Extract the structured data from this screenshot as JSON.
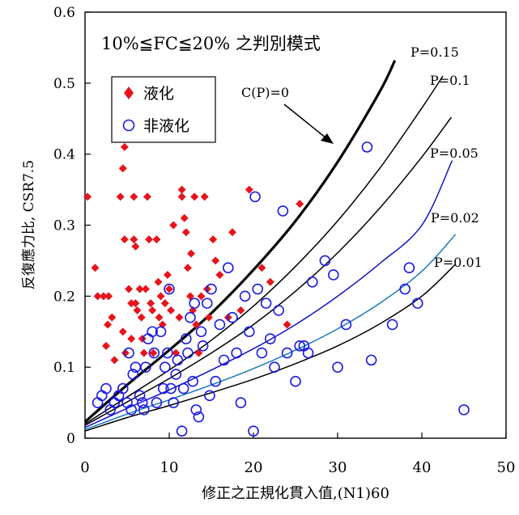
{
  "chart_data": {
    "type": "scatter",
    "title": "10%≦FC≦20% 之判別模式",
    "xlabel": "修正之正規化貫入值,(N1)60",
    "ylabel": "反復應力比, CSR7.5",
    "xlim": [
      0,
      50
    ],
    "ylim": [
      0,
      0.6
    ],
    "x_ticks": [
      "0",
      "10",
      "20",
      "30",
      "40",
      "50"
    ],
    "y_ticks": [
      "0",
      "0.1",
      "0.2",
      "0.3",
      "0.4",
      "0.5",
      "0.6"
    ],
    "grid": false,
    "legend": {
      "placement": "upper-left",
      "entries": [
        "液化",
        "非液化"
      ]
    },
    "annotation": "C(P)=0",
    "series": [
      {
        "name": "液化",
        "marker": "filled-diamond",
        "color": "#e8141b",
        "points": [
          [
            0.3,
            0.34
          ],
          [
            1.2,
            0.24
          ],
          [
            1.5,
            0.2
          ],
          [
            2.2,
            0.2
          ],
          [
            2.5,
            0.13
          ],
          [
            2.7,
            0.16
          ],
          [
            2.8,
            0.2
          ],
          [
            3.2,
            0.17
          ],
          [
            3.5,
            0.11
          ],
          [
            4.2,
            0.34
          ],
          [
            4.5,
            0.38
          ],
          [
            4.7,
            0.41
          ],
          [
            4.7,
            0.28
          ],
          [
            4.5,
            0.15
          ],
          [
            4.8,
            0.12
          ],
          [
            5.2,
            0.21
          ],
          [
            5.5,
            0.19
          ],
          [
            5.5,
            0.14
          ],
          [
            5.8,
            0.34
          ],
          [
            5.8,
            0.28
          ],
          [
            6,
            0.27
          ],
          [
            6,
            0.19
          ],
          [
            6.2,
            0.18
          ],
          [
            6.5,
            0.21
          ],
          [
            6.7,
            0.17
          ],
          [
            6.8,
            0.14
          ],
          [
            7,
            0.12
          ],
          [
            7.2,
            0.21
          ],
          [
            7.4,
            0.34
          ],
          [
            7.6,
            0.28
          ],
          [
            7.8,
            0.19
          ],
          [
            8,
            0.18
          ],
          [
            8.1,
            0.12
          ],
          [
            8.5,
            0.28
          ],
          [
            8.7,
            0.22
          ],
          [
            8.8,
            0.17
          ],
          [
            9,
            0.2
          ],
          [
            9.2,
            0.16
          ],
          [
            9.5,
            0.19
          ],
          [
            9.8,
            0.23
          ],
          [
            10,
            0.21
          ],
          [
            10.2,
            0.18
          ],
          [
            10.5,
            0.3
          ],
          [
            10.8,
            0.12
          ],
          [
            11.2,
            0.17
          ],
          [
            11.5,
            0.35
          ],
          [
            11.5,
            0.34
          ],
          [
            11.8,
            0.31
          ],
          [
            12,
            0.29
          ],
          [
            12.2,
            0.24
          ],
          [
            12.5,
            0.2
          ],
          [
            12.6,
            0.26
          ],
          [
            12.8,
            0.18
          ],
          [
            13,
            0.34
          ],
          [
            13.2,
            0.16
          ],
          [
            13.5,
            0.12
          ],
          [
            13.8,
            0.2
          ],
          [
            14.2,
            0.34
          ],
          [
            14.5,
            0.21
          ],
          [
            14.7,
            0.17
          ],
          [
            15.2,
            0.28
          ],
          [
            15.5,
            0.25
          ],
          [
            16,
            0.23
          ],
          [
            17,
            0.17
          ],
          [
            17.5,
            0.29
          ],
          [
            18.5,
            0.18
          ],
          [
            19.5,
            0.35
          ],
          [
            21,
            0.24
          ],
          [
            22,
            0.22
          ],
          [
            24,
            0.16
          ],
          [
            25.5,
            0.33
          ]
        ]
      },
      {
        "name": "非液化",
        "marker": "open-circle",
        "color": "#1a1ae6",
        "points": [
          [
            1.5,
            0.05
          ],
          [
            2,
            0.06
          ],
          [
            2.5,
            0.07
          ],
          [
            3,
            0.04
          ],
          [
            3.5,
            0.05
          ],
          [
            4,
            0.06
          ],
          [
            4.5,
            0.07
          ],
          [
            5,
            0.05
          ],
          [
            5.2,
            0.12
          ],
          [
            5.5,
            0.04
          ],
          [
            5.7,
            0.09
          ],
          [
            6,
            0.1
          ],
          [
            6.5,
            0.06
          ],
          [
            6.8,
            0.05
          ],
          [
            7,
            0.04
          ],
          [
            7.2,
            0.1
          ],
          [
            7.5,
            0.14
          ],
          [
            8,
            0.15
          ],
          [
            8.2,
            0.12
          ],
          [
            8.5,
            0.05
          ],
          [
            9,
            0.15
          ],
          [
            9.3,
            0.07
          ],
          [
            9.5,
            0.1
          ],
          [
            9.8,
            0.12
          ],
          [
            10,
            0.21
          ],
          [
            10.2,
            0.07
          ],
          [
            10.5,
            0.05
          ],
          [
            10.8,
            0.09
          ],
          [
            11,
            0.11
          ],
          [
            11.5,
            0.01
          ],
          [
            11.7,
            0.07
          ],
          [
            12,
            0.14
          ],
          [
            12.2,
            0.12
          ],
          [
            12.5,
            0.17
          ],
          [
            12.8,
            0.08
          ],
          [
            13,
            0.19
          ],
          [
            13.2,
            0.04
          ],
          [
            13.5,
            0.03
          ],
          [
            13.8,
            0.15
          ],
          [
            14,
            0.13
          ],
          [
            14.5,
            0.19
          ],
          [
            14.8,
            0.06
          ],
          [
            15,
            0.21
          ],
          [
            15.5,
            0.08
          ],
          [
            16,
            0.16
          ],
          [
            16.5,
            0.11
          ],
          [
            17,
            0.24
          ],
          [
            17.5,
            0.17
          ],
          [
            18,
            0.12
          ],
          [
            18.5,
            0.05
          ],
          [
            19,
            0.2
          ],
          [
            19.5,
            0.15
          ],
          [
            20,
            0.01
          ],
          [
            20.2,
            0.34
          ],
          [
            20.5,
            0.21
          ],
          [
            21,
            0.12
          ],
          [
            21.5,
            0.19
          ],
          [
            22,
            0.14
          ],
          [
            22.5,
            0.1
          ],
          [
            23,
            0.18
          ],
          [
            23.5,
            0.32
          ],
          [
            24,
            0.12
          ],
          [
            25,
            0.08
          ],
          [
            25.5,
            0.13
          ],
          [
            26,
            0.13
          ],
          [
            26.5,
            0.12
          ],
          [
            27,
            0.22
          ],
          [
            28.5,
            0.25
          ],
          [
            29.5,
            0.23
          ],
          [
            30,
            0.1
          ],
          [
            31,
            0.16
          ],
          [
            33.5,
            0.41
          ],
          [
            34,
            0.11
          ],
          [
            36.5,
            0.16
          ],
          [
            38,
            0.21
          ],
          [
            38.5,
            0.24
          ],
          [
            39.5,
            0.19
          ],
          [
            45,
            0.04
          ]
        ]
      }
    ],
    "curves": [
      {
        "name": "C(P)=0",
        "style": "thick-black",
        "x": [
          0,
          5,
          10,
          15,
          20,
          25,
          30,
          35,
          36.8
        ],
        "y": [
          0.023,
          0.075,
          0.124,
          0.176,
          0.237,
          0.306,
          0.389,
          0.488,
          0.532
        ]
      },
      {
        "name": "P=0.15",
        "style": "black",
        "x": [
          0,
          5,
          10,
          15,
          20,
          25,
          30,
          35,
          40,
          42.5
        ],
        "y": [
          0.02,
          0.058,
          0.096,
          0.138,
          0.186,
          0.242,
          0.306,
          0.38,
          0.465,
          0.51
        ]
      },
      {
        "name": "P=0.1",
        "style": "black",
        "x": [
          0,
          5,
          10,
          15,
          20,
          25,
          30,
          35,
          40,
          43.5
        ],
        "y": [
          0.018,
          0.051,
          0.084,
          0.12,
          0.16,
          0.207,
          0.261,
          0.324,
          0.396,
          0.452
        ]
      },
      {
        "name": "P=0.05",
        "style": "blue",
        "x": [
          0,
          5,
          10,
          15,
          20,
          25,
          30,
          35,
          40,
          43.6
        ],
        "y": [
          0.015,
          0.042,
          0.068,
          0.096,
          0.126,
          0.16,
          0.2,
          0.246,
          0.3,
          0.391
        ]
      },
      {
        "name": "P=0.02",
        "style": "steelblue",
        "x": [
          0,
          5,
          10,
          15,
          20,
          25,
          30,
          35,
          40,
          44
        ],
        "y": [
          0.012,
          0.034,
          0.054,
          0.075,
          0.098,
          0.124,
          0.154,
          0.19,
          0.235,
          0.287
        ]
      },
      {
        "name": "P=0.01",
        "style": "black",
        "x": [
          0,
          5,
          10,
          15,
          20,
          25,
          30,
          35,
          40,
          44
        ],
        "y": [
          0.01,
          0.029,
          0.046,
          0.064,
          0.083,
          0.105,
          0.13,
          0.161,
          0.2,
          0.245
        ]
      }
    ],
    "curve_labels": [
      "P=0.15",
      "P=0.1",
      "P=0.05",
      "P=0.02",
      "P=0.01"
    ]
  },
  "colors": {
    "liquefied": "#e8141b",
    "non_liquefied": "#1a1ae6",
    "blue_curve": "#1212c8",
    "steel_curve": "#1a7ab8"
  }
}
